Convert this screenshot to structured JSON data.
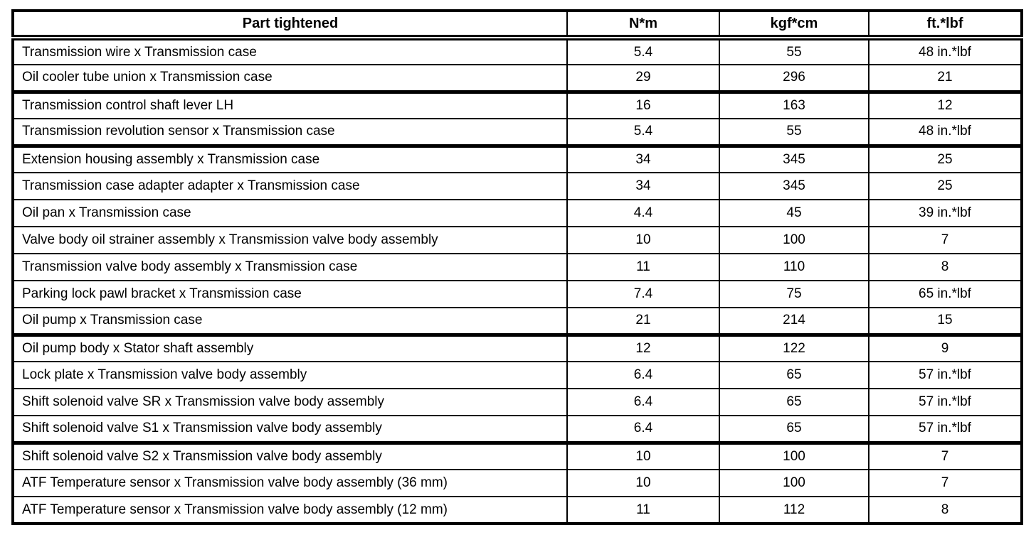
{
  "table": {
    "columns": {
      "part": "Part tightened",
      "nm": "N*m",
      "kgfcm": "kgf*cm",
      "ftlbf": "ft.*lbf"
    },
    "thick_separator_after": [
      2,
      4,
      11,
      15
    ],
    "rows": [
      {
        "part": "Transmission wire x Transmission case",
        "nm": "5.4",
        "kgfcm": "55",
        "ftlbf": "48 in.*lbf"
      },
      {
        "part": "Oil cooler tube union x Transmission case",
        "nm": "29",
        "kgfcm": "296",
        "ftlbf": "21"
      },
      {
        "part": "Transmission control shaft lever LH",
        "nm": "16",
        "kgfcm": "163",
        "ftlbf": "12"
      },
      {
        "part": "Transmission revolution sensor x Transmission case",
        "nm": "5.4",
        "kgfcm": "55",
        "ftlbf": "48 in.*lbf"
      },
      {
        "part": "Extension housing assembly x Transmission case",
        "nm": "34",
        "kgfcm": "345",
        "ftlbf": "25"
      },
      {
        "part": "Transmission case adapter adapter x Transmission case",
        "nm": "34",
        "kgfcm": "345",
        "ftlbf": "25"
      },
      {
        "part": "Oil pan x Transmission case",
        "nm": "4.4",
        "kgfcm": "45",
        "ftlbf": "39 in.*lbf"
      },
      {
        "part": "Valve body oil strainer assembly x Transmission valve body assembly",
        "nm": "10",
        "kgfcm": "100",
        "ftlbf": "7"
      },
      {
        "part": "Transmission valve body assembly x Transmission case",
        "nm": "11",
        "kgfcm": "110",
        "ftlbf": "8"
      },
      {
        "part": "Parking lock pawl bracket x Transmission case",
        "nm": "7.4",
        "kgfcm": "75",
        "ftlbf": "65 in.*lbf"
      },
      {
        "part": "Oil pump x Transmission case",
        "nm": "21",
        "kgfcm": "214",
        "ftlbf": "15"
      },
      {
        "part": "Oil pump body x Stator shaft assembly",
        "nm": "12",
        "kgfcm": "122",
        "ftlbf": "9"
      },
      {
        "part": "Lock plate x Transmission valve body assembly",
        "nm": "6.4",
        "kgfcm": "65",
        "ftlbf": "57 in.*lbf"
      },
      {
        "part": "Shift solenoid valve SR x Transmission valve body assembly",
        "nm": "6.4",
        "kgfcm": "65",
        "ftlbf": "57 in.*lbf"
      },
      {
        "part": "Shift solenoid valve S1 x Transmission valve body assembly",
        "nm": "6.4",
        "kgfcm": "65",
        "ftlbf": "57 in.*lbf"
      },
      {
        "part": "Shift solenoid valve S2 x Transmission valve body assembly",
        "nm": "10",
        "kgfcm": "100",
        "ftlbf": "7"
      },
      {
        "part": "ATF Temperature sensor x Transmission valve body assembly (36 mm)",
        "nm": "10",
        "kgfcm": "100",
        "ftlbf": "7"
      },
      {
        "part": "ATF Temperature sensor x Transmission valve body assembly (12 mm)",
        "nm": "11",
        "kgfcm": "112",
        "ftlbf": "8"
      }
    ],
    "colors": {
      "border": "#000000",
      "text": "#000000",
      "background": "#ffffff"
    }
  }
}
